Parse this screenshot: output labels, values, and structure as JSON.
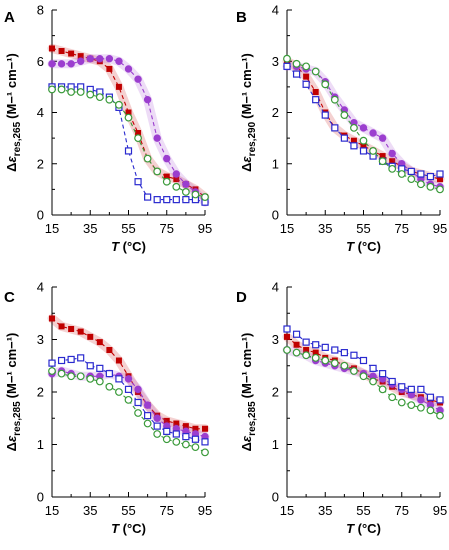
{
  "chart_data": [
    {
      "type": "scatter",
      "panel": "A",
      "xlabel": "T (°C)",
      "ylabel": "Δε res,265 (M⁻¹ cm⁻¹)",
      "ylabel_sub": "res,265",
      "xlim": [
        15,
        95
      ],
      "ylim": [
        0,
        8
      ],
      "xticks": [
        15,
        35,
        55,
        75,
        95
      ],
      "yticks": [
        0,
        2,
        4,
        6,
        8
      ],
      "series": [
        {
          "color": "#c00000",
          "marker": "filled-square",
          "x": [
            15,
            20,
            25,
            30,
            35,
            40,
            45,
            50,
            55,
            60,
            65,
            70,
            75,
            80,
            85,
            90,
            95
          ],
          "y": [
            6.5,
            6.4,
            6.3,
            6.2,
            6.1,
            6.0,
            5.7,
            5.0,
            4.0,
            3.2,
            2.2,
            1.7,
            1.5,
            1.4,
            1.2,
            1.0,
            0.7
          ]
        },
        {
          "color": "#9b3ecf",
          "marker": "filled-circle",
          "x": [
            15,
            20,
            25,
            30,
            35,
            40,
            45,
            50,
            55,
            60,
            65,
            70,
            75,
            80,
            85,
            90,
            95
          ],
          "y": [
            5.9,
            5.9,
            5.9,
            6.0,
            6.1,
            6.1,
            6.1,
            6.0,
            5.7,
            5.3,
            4.5,
            3.0,
            2.2,
            1.6,
            1.2,
            0.9,
            0.5
          ]
        },
        {
          "color": "#2a2acf",
          "marker": "open-square",
          "x": [
            15,
            20,
            25,
            30,
            35,
            40,
            45,
            50,
            55,
            60,
            65,
            70,
            75,
            80,
            85,
            90,
            95
          ],
          "y": [
            5.0,
            5.0,
            5.0,
            5.0,
            4.9,
            4.8,
            4.6,
            4.2,
            2.5,
            1.3,
            0.7,
            0.6,
            0.6,
            0.6,
            0.6,
            0.6,
            0.5
          ]
        },
        {
          "color": "#3a9a3a",
          "marker": "open-circle",
          "x": [
            15,
            20,
            25,
            30,
            35,
            40,
            45,
            50,
            55,
            60,
            65,
            70,
            75,
            80,
            85,
            90,
            95
          ],
          "y": [
            4.9,
            4.9,
            4.8,
            4.8,
            4.7,
            4.6,
            4.5,
            4.3,
            3.8,
            3.0,
            2.2,
            1.7,
            1.3,
            1.1,
            0.9,
            0.8,
            0.7
          ]
        }
      ]
    },
    {
      "type": "scatter",
      "panel": "B",
      "xlabel": "T (°C)",
      "ylabel": "Δε res,290 (M⁻¹ cm⁻¹)",
      "ylabel_sub": "res,290",
      "xlim": [
        15,
        95
      ],
      "ylim": [
        0,
        4
      ],
      "xticks": [
        15,
        35,
        55,
        75,
        95
      ],
      "yticks": [
        0,
        1,
        2,
        3,
        4
      ],
      "series": [
        {
          "color": "#c00000",
          "marker": "filled-square",
          "x": [
            15,
            20,
            25,
            30,
            35,
            40,
            45,
            50,
            55,
            60,
            65,
            70,
            75,
            80,
            85,
            90,
            95
          ],
          "y": [
            3.0,
            2.9,
            2.7,
            2.4,
            2.0,
            1.7,
            1.55,
            1.45,
            1.35,
            1.25,
            1.15,
            1.05,
            0.95,
            0.85,
            0.8,
            0.75,
            0.7
          ]
        },
        {
          "color": "#9b3ecf",
          "marker": "filled-circle",
          "x": [
            15,
            20,
            25,
            30,
            35,
            40,
            45,
            50,
            55,
            60,
            65,
            70,
            75,
            80,
            85,
            90,
            95
          ],
          "y": [
            2.9,
            2.9,
            2.85,
            2.8,
            2.6,
            2.3,
            2.05,
            1.8,
            1.7,
            1.6,
            1.5,
            1.2,
            1.0,
            0.85,
            0.7,
            0.6,
            0.55
          ]
        },
        {
          "color": "#2a2acf",
          "marker": "open-square",
          "x": [
            15,
            20,
            25,
            30,
            35,
            40,
            45,
            50,
            55,
            60,
            65,
            70,
            75,
            80,
            85,
            90,
            95
          ],
          "y": [
            2.9,
            2.75,
            2.55,
            2.25,
            1.95,
            1.7,
            1.5,
            1.35,
            1.25,
            1.15,
            1.05,
            0.95,
            0.9,
            0.85,
            0.8,
            0.75,
            0.8
          ]
        },
        {
          "color": "#3a9a3a",
          "marker": "open-circle",
          "x": [
            15,
            20,
            25,
            30,
            35,
            40,
            45,
            50,
            55,
            60,
            65,
            70,
            75,
            80,
            85,
            90,
            95
          ],
          "y": [
            3.05,
            2.95,
            2.9,
            2.8,
            2.55,
            2.25,
            1.95,
            1.7,
            1.45,
            1.25,
            1.05,
            0.9,
            0.8,
            0.7,
            0.6,
            0.55,
            0.5
          ]
        }
      ]
    },
    {
      "type": "scatter",
      "panel": "C",
      "xlabel": "T (°C)",
      "ylabel": "Δε res,285 (M⁻¹ cm⁻¹)",
      "ylabel_sub": "res,285",
      "xlim": [
        15,
        95
      ],
      "ylim": [
        0,
        4
      ],
      "xticks": [
        15,
        35,
        55,
        75,
        95
      ],
      "yticks": [
        0,
        1,
        2,
        3,
        4
      ],
      "series": [
        {
          "color": "#c00000",
          "marker": "filled-square",
          "x": [
            15,
            20,
            25,
            30,
            35,
            40,
            45,
            50,
            55,
            60,
            65,
            70,
            75,
            80,
            85,
            90,
            95
          ],
          "y": [
            3.4,
            3.25,
            3.2,
            3.15,
            3.05,
            2.95,
            2.8,
            2.6,
            2.3,
            2.0,
            1.75,
            1.55,
            1.45,
            1.4,
            1.35,
            1.3,
            1.3
          ]
        },
        {
          "color": "#9b3ecf",
          "marker": "filled-circle",
          "x": [
            15,
            20,
            25,
            30,
            35,
            40,
            45,
            50,
            55,
            60,
            65,
            70,
            75,
            80,
            85,
            90,
            95
          ],
          "y": [
            2.35,
            2.4,
            2.35,
            2.3,
            2.3,
            2.3,
            2.35,
            2.3,
            2.25,
            2.05,
            1.75,
            1.5,
            1.35,
            1.3,
            1.25,
            1.2,
            1.15
          ]
        },
        {
          "color": "#2a2acf",
          "marker": "open-square",
          "x": [
            15,
            20,
            25,
            30,
            35,
            40,
            45,
            50,
            55,
            60,
            65,
            70,
            75,
            80,
            85,
            90,
            95
          ],
          "y": [
            2.55,
            2.6,
            2.62,
            2.65,
            2.5,
            2.45,
            2.35,
            2.25,
            2.05,
            1.8,
            1.55,
            1.35,
            1.25,
            1.2,
            1.15,
            1.1,
            1.05
          ]
        },
        {
          "color": "#3a9a3a",
          "marker": "open-circle",
          "x": [
            15,
            20,
            25,
            30,
            35,
            40,
            45,
            50,
            55,
            60,
            65,
            70,
            75,
            80,
            85,
            90,
            95
          ],
          "y": [
            2.4,
            2.35,
            2.3,
            2.3,
            2.25,
            2.2,
            2.1,
            2.0,
            1.85,
            1.6,
            1.4,
            1.2,
            1.1,
            1.05,
            1.0,
            0.95,
            0.85
          ]
        }
      ]
    },
    {
      "type": "scatter",
      "panel": "D",
      "xlabel": "T (°C)",
      "ylabel": "Δε res,285 (M⁻¹ cm⁻¹)",
      "ylabel_sub": "res,285",
      "xlim": [
        15,
        95
      ],
      "ylim": [
        0,
        4
      ],
      "xticks": [
        15,
        35,
        55,
        75,
        95
      ],
      "yticks": [
        0,
        1,
        2,
        3,
        4
      ],
      "series": [
        {
          "color": "#c00000",
          "marker": "filled-square",
          "x": [
            15,
            20,
            25,
            30,
            35,
            40,
            45,
            50,
            55,
            60,
            65,
            70,
            75,
            80,
            85,
            90,
            95
          ],
          "y": [
            3.05,
            2.9,
            2.8,
            2.75,
            2.65,
            2.6,
            2.5,
            2.45,
            2.35,
            2.25,
            2.2,
            2.1,
            2.0,
            1.95,
            1.9,
            1.85,
            1.8
          ]
        },
        {
          "color": "#9b3ecf",
          "marker": "filled-circle",
          "x": [
            15,
            20,
            25,
            30,
            35,
            40,
            45,
            50,
            55,
            60,
            65,
            70,
            75,
            80,
            85,
            90,
            95
          ],
          "y": [
            2.8,
            2.75,
            2.7,
            2.6,
            2.55,
            2.5,
            2.45,
            2.4,
            2.35,
            2.3,
            2.25,
            2.15,
            2.05,
            1.95,
            1.85,
            1.75,
            1.65
          ]
        },
        {
          "color": "#2a2acf",
          "marker": "open-square",
          "x": [
            15,
            20,
            25,
            30,
            35,
            40,
            45,
            50,
            55,
            60,
            65,
            70,
            75,
            80,
            85,
            90,
            95
          ],
          "y": [
            3.2,
            3.1,
            2.95,
            2.9,
            2.85,
            2.8,
            2.75,
            2.7,
            2.6,
            2.45,
            2.35,
            2.2,
            2.1,
            2.05,
            2.05,
            1.9,
            1.85
          ]
        },
        {
          "color": "#3a9a3a",
          "marker": "open-circle",
          "x": [
            15,
            20,
            25,
            30,
            35,
            40,
            45,
            50,
            55,
            60,
            65,
            70,
            75,
            80,
            85,
            90,
            95
          ],
          "y": [
            2.8,
            2.75,
            2.7,
            2.65,
            2.6,
            2.55,
            2.5,
            2.4,
            2.3,
            2.2,
            2.05,
            1.9,
            1.8,
            1.75,
            1.7,
            1.65,
            1.55
          ]
        }
      ]
    }
  ]
}
